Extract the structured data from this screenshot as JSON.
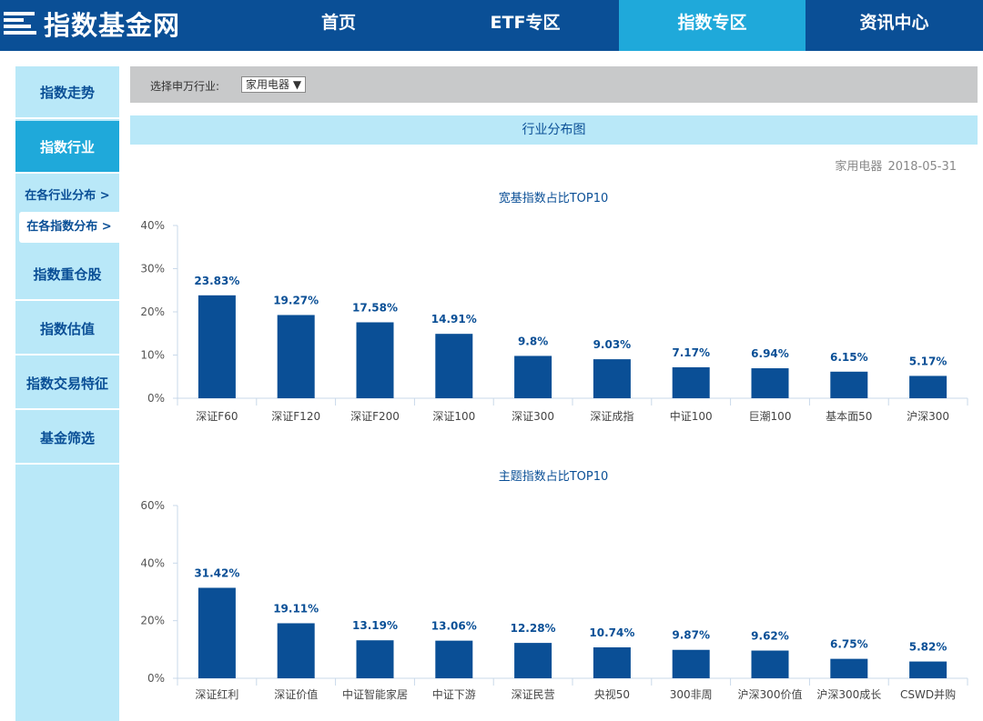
{
  "header": {
    "logo_text": "指数基金网",
    "nav": [
      {
        "label": "首页",
        "active": false
      },
      {
        "label": "ETF专区",
        "active": false
      },
      {
        "label": "指数专区",
        "active": true
      },
      {
        "label": "资讯中心",
        "active": false
      }
    ]
  },
  "sidebar": {
    "items": [
      {
        "label": "指数走势"
      },
      {
        "label": "指数行业"
      },
      {
        "label": "在各行业分布 >"
      },
      {
        "label": "在各指数分布 >"
      },
      {
        "label": "指数重仓股"
      },
      {
        "label": "指数估值"
      },
      {
        "label": "指数交易特征"
      },
      {
        "label": "基金筛选"
      }
    ]
  },
  "filter": {
    "label": "选择申万行业:",
    "selected": "家用电器 ▼"
  },
  "section": {
    "title": "行业分布图",
    "industry": "家用电器",
    "date": "2018-05-31"
  },
  "colors": {
    "bar": "#0a4f96",
    "label": "#0a4f96",
    "accent": "#1fa9da",
    "header": "#0a4f96"
  },
  "chart_data": [
    {
      "type": "bar",
      "title": "宽基指数占比TOP10",
      "categories": [
        "深证F60",
        "深证F120",
        "深证F200",
        "深证100",
        "深证300",
        "深证成指",
        "中证100",
        "巨潮100",
        "基本面50",
        "沪深300"
      ],
      "values": [
        23.83,
        19.27,
        17.58,
        14.91,
        9.8,
        9.03,
        7.17,
        6.94,
        6.15,
        5.17
      ],
      "value_labels": [
        "23.83%",
        "19.27%",
        "17.58%",
        "14.91%",
        "9.8%",
        "9.03%",
        "7.17%",
        "6.94%",
        "6.15%",
        "5.17%"
      ],
      "ylim": [
        0,
        40
      ],
      "yticks": [
        0,
        10,
        20,
        30,
        40
      ],
      "ytick_labels": [
        "0%",
        "10%",
        "20%",
        "30%",
        "40%"
      ],
      "grid": false
    },
    {
      "type": "bar",
      "title": "主题指数占比TOP10",
      "categories": [
        "深证红利",
        "深证价值",
        "中证智能家居",
        "中证下游",
        "深证民营",
        "央视50",
        "300非周",
        "沪深300价值",
        "沪深300成长",
        "CSWD并购"
      ],
      "values": [
        31.42,
        19.11,
        13.19,
        13.06,
        12.28,
        10.74,
        9.87,
        9.62,
        6.75,
        5.82
      ],
      "value_labels": [
        "31.42%",
        "19.11%",
        "13.19%",
        "13.06%",
        "12.28%",
        "10.74%",
        "9.87%",
        "9.62%",
        "6.75%",
        "5.82%"
      ],
      "ylim": [
        0,
        60
      ],
      "yticks": [
        0,
        20,
        40,
        60
      ],
      "ytick_labels": [
        "0%",
        "20%",
        "40%",
        "60%"
      ],
      "grid": false
    }
  ]
}
